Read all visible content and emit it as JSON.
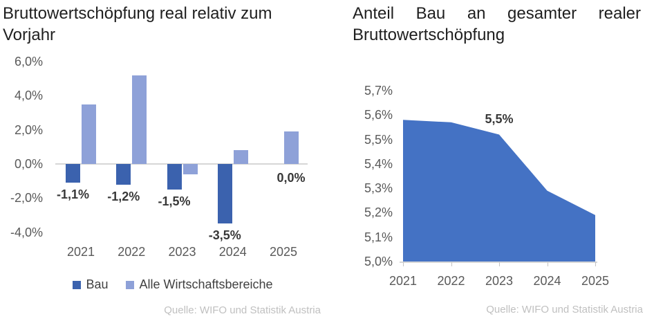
{
  "chart_data": [
    {
      "type": "bar",
      "title": "Bruttowertschöpfung real relativ zum Vorjahr",
      "title_lines": [
        "Bruttowertschöpfung real relativ zum",
        "Vorjahr"
      ],
      "categories": [
        "2021",
        "2022",
        "2023",
        "2024",
        "2025"
      ],
      "series": [
        {
          "name": "Bau",
          "color": "#3B62AE",
          "values": [
            -1.1,
            -1.2,
            -1.5,
            -3.5,
            0.0
          ],
          "labels": [
            "-1,1%",
            "-1,2%",
            "-1,5%",
            "-3,5%",
            "0,0%"
          ]
        },
        {
          "name": "Alle Wirtschaftsbereiche",
          "color": "#8EA1D8",
          "values": [
            3.5,
            5.2,
            -0.6,
            0.8,
            1.9
          ]
        }
      ],
      "ylim": [
        -4.0,
        6.0
      ],
      "ytick_values": [
        6,
        4,
        2,
        0,
        -2,
        -4
      ],
      "ytick_labels": [
        "6,0%",
        "4,0%",
        "2,0%",
        "0,0%",
        "-2,0%",
        "-4,0%"
      ],
      "grid": false,
      "legend_position": "bottom",
      "source": "Quelle: WIFO und Statistik Austria"
    },
    {
      "type": "area",
      "title": "Anteil Bau an gesamter realer Bruttowertschöpfung",
      "title_lines": [
        "Anteil Bau an gesamter realer",
        "Bruttowertschöpfung"
      ],
      "x": [
        "2021",
        "2022",
        "2023",
        "2024",
        "2025"
      ],
      "values": [
        5.58,
        5.57,
        5.52,
        5.29,
        5.19
      ],
      "annotation": {
        "text": "5,5%",
        "x": "2023"
      },
      "ylim": [
        5.0,
        5.7
      ],
      "ytick_values": [
        5.7,
        5.6,
        5.5,
        5.4,
        5.3,
        5.2,
        5.1,
        5.0
      ],
      "ytick_labels": [
        "5,7%",
        "5,6%",
        "5,5%",
        "5,4%",
        "5,3%",
        "5,2%",
        "5,1%",
        "5,0%"
      ],
      "fill_color": "#4472C4",
      "grid": false,
      "source": "Quelle: WIFO und Statistik Austria"
    }
  ]
}
